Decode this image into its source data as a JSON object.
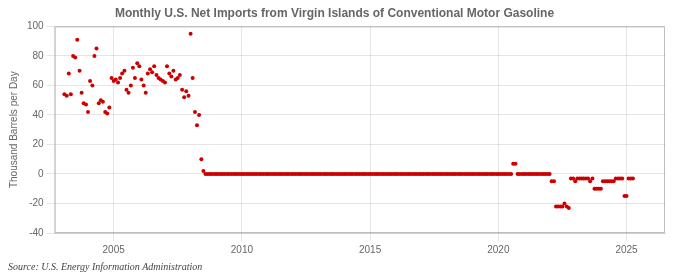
{
  "chart_data": {
    "type": "scatter",
    "title": "Monthly U.S. Net Imports from Virgin Islands of Conventional Motor Gasoline",
    "ylabel": "Thousand Barrels per Day",
    "annotations": [
      "Source: U.S. Energy Information Administration"
    ],
    "color": "#cc0000",
    "grid": true,
    "xlim": [
      2002.7,
      2026.5
    ],
    "xticks": [
      2005,
      2010,
      2015,
      2020,
      2025
    ],
    "ylim": [
      -40,
      100
    ],
    "yticks": [
      -40,
      -20,
      0,
      20,
      40,
      60,
      80,
      100
    ],
    "x": [
      2003.08,
      2003.17,
      2003.25,
      2003.33,
      2003.42,
      2003.5,
      2003.58,
      2003.67,
      2003.75,
      2003.83,
      2003.92,
      2004.0,
      2004.08,
      2004.17,
      2004.25,
      2004.33,
      2004.42,
      2004.5,
      2004.58,
      2004.67,
      2004.75,
      2004.83,
      2004.92,
      2005.0,
      2005.08,
      2005.17,
      2005.25,
      2005.33,
      2005.42,
      2005.5,
      2005.58,
      2005.67,
      2005.75,
      2005.83,
      2005.92,
      2006.0,
      2006.08,
      2006.17,
      2006.25,
      2006.33,
      2006.42,
      2006.5,
      2006.58,
      2006.67,
      2006.75,
      2006.83,
      2006.92,
      2007.0,
      2007.08,
      2007.17,
      2007.25,
      2007.33,
      2007.42,
      2007.5,
      2007.58,
      2007.67,
      2007.75,
      2007.83,
      2007.92,
      2008.0,
      2008.08,
      2008.17,
      2008.25,
      2008.33,
      2008.42,
      2008.5,
      2008.58,
      2008.67,
      2008.75,
      2008.83,
      2008.92,
      2009.0,
      2009.08,
      2009.17,
      2009.25,
      2009.33,
      2009.42,
      2009.5,
      2009.58,
      2009.67,
      2009.75,
      2009.83,
      2009.92,
      2010.0,
      2010.08,
      2010.17,
      2010.25,
      2010.33,
      2010.42,
      2010.5,
      2010.58,
      2010.67,
      2010.75,
      2010.83,
      2010.92,
      2011.0,
      2011.08,
      2011.17,
      2011.25,
      2011.33,
      2011.42,
      2011.5,
      2011.58,
      2011.67,
      2011.75,
      2011.83,
      2011.92,
      2012.0,
      2012.08,
      2012.17,
      2012.25,
      2012.33,
      2012.42,
      2012.5,
      2012.58,
      2012.67,
      2012.75,
      2012.83,
      2012.92,
      2013.0,
      2013.08,
      2013.17,
      2013.25,
      2013.33,
      2013.42,
      2013.5,
      2013.58,
      2013.67,
      2013.75,
      2013.83,
      2013.92,
      2014.0,
      2014.08,
      2014.17,
      2014.25,
      2014.33,
      2014.42,
      2014.5,
      2014.58,
      2014.67,
      2014.75,
      2014.83,
      2014.92,
      2015.0,
      2015.08,
      2015.17,
      2015.25,
      2015.33,
      2015.42,
      2015.5,
      2015.58,
      2015.67,
      2015.75,
      2015.83,
      2015.92,
      2016.0,
      2016.08,
      2016.17,
      2016.25,
      2016.33,
      2016.42,
      2016.5,
      2016.58,
      2016.67,
      2016.75,
      2016.83,
      2016.92,
      2017.0,
      2017.08,
      2017.17,
      2017.25,
      2017.33,
      2017.42,
      2017.5,
      2017.58,
      2017.67,
      2017.75,
      2017.83,
      2017.92,
      2018.0,
      2018.08,
      2018.17,
      2018.25,
      2018.33,
      2018.42,
      2018.5,
      2018.58,
      2018.67,
      2018.75,
      2018.83,
      2018.92,
      2019.0,
      2019.08,
      2019.17,
      2019.25,
      2019.33,
      2019.42,
      2019.5,
      2019.58,
      2019.67,
      2019.75,
      2019.83,
      2019.92,
      2020.0,
      2020.08,
      2020.17,
      2020.25,
      2020.33,
      2020.42,
      2020.5,
      2020.58,
      2020.67,
      2020.75,
      2020.83,
      2020.92,
      2021.0,
      2021.08,
      2021.17,
      2021.25,
      2021.33,
      2021.42,
      2021.5,
      2021.58,
      2021.67,
      2021.75,
      2021.83,
      2021.92,
      2022.0,
      2022.08,
      2022.17,
      2022.25,
      2022.33,
      2022.42,
      2022.5,
      2022.58,
      2022.67,
      2022.75,
      2022.83,
      2022.92,
      2023.0,
      2023.08,
      2023.17,
      2023.25,
      2023.33,
      2023.42,
      2023.5,
      2023.58,
      2023.67,
      2023.75,
      2023.83,
      2023.92,
      2024.0,
      2024.08,
      2024.17,
      2024.25,
      2024.33,
      2024.42,
      2024.5,
      2024.58,
      2024.67,
      2024.75,
      2024.83,
      2024.92,
      2025.0,
      2025.08,
      2025.17,
      2025.25
    ],
    "values": [
      54,
      53,
      68,
      54,
      80,
      79,
      91,
      70,
      55,
      48,
      47,
      42,
      63,
      60,
      80,
      85,
      48,
      50,
      49,
      42,
      41,
      45,
      65,
      63,
      64,
      62,
      65,
      68,
      70,
      57,
      55,
      60,
      72,
      65,
      75,
      73,
      64,
      60,
      55,
      68,
      71,
      69,
      73,
      67,
      65,
      64,
      63,
      62,
      73,
      68,
      66,
      70,
      64,
      65,
      67,
      57,
      52,
      56,
      53,
      95,
      65,
      42,
      33,
      40,
      10,
      2,
      0,
      0,
      0,
      0,
      0,
      0,
      0,
      0,
      0,
      0,
      0,
      0,
      0,
      0,
      0,
      0,
      0,
      0,
      0,
      0,
      0,
      0,
      0,
      0,
      0,
      0,
      0,
      0,
      0,
      0,
      0,
      0,
      0,
      0,
      0,
      0,
      0,
      0,
      0,
      0,
      0,
      0,
      0,
      0,
      0,
      0,
      0,
      0,
      0,
      0,
      0,
      0,
      0,
      0,
      0,
      0,
      0,
      0,
      0,
      0,
      0,
      0,
      0,
      0,
      0,
      0,
      0,
      0,
      0,
      0,
      0,
      0,
      0,
      0,
      0,
      0,
      0,
      0,
      0,
      0,
      0,
      0,
      0,
      0,
      0,
      0,
      0,
      0,
      0,
      0,
      0,
      0,
      0,
      0,
      0,
      0,
      0,
      0,
      0,
      0,
      0,
      0,
      0,
      0,
      0,
      0,
      0,
      0,
      0,
      0,
      0,
      0,
      0,
      0,
      0,
      0,
      0,
      0,
      0,
      0,
      0,
      0,
      0,
      0,
      0,
      0,
      0,
      0,
      0,
      0,
      0,
      0,
      0,
      0,
      0,
      0,
      0,
      0,
      0,
      0,
      0,
      0,
      0,
      0,
      7,
      7,
      0,
      0,
      0,
      0,
      0,
      0,
      0,
      0,
      0,
      0,
      0,
      0,
      0,
      0,
      0,
      0,
      -5,
      -5,
      -22,
      -22,
      -22,
      -22,
      -20,
      -22,
      -23,
      -3,
      -3,
      -5,
      -3,
      -3,
      -3,
      -3,
      -3,
      -3,
      -5,
      -3,
      -10,
      -10,
      -10,
      -10,
      -5,
      -5,
      -5,
      -5,
      -5,
      -5,
      -3,
      -3,
      -3,
      -3,
      -15,
      -15,
      -3,
      -3,
      -3
    ]
  }
}
